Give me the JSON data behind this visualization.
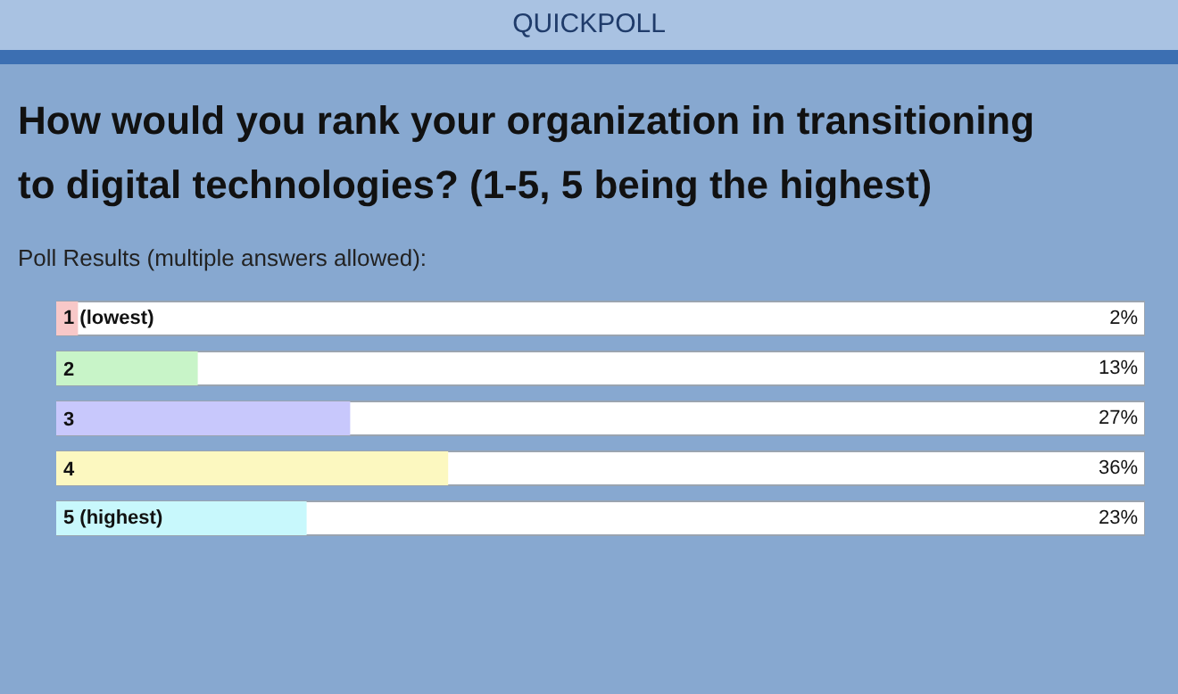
{
  "chart_data": {
    "type": "bar",
    "orientation": "horizontal",
    "subtitle": "QUICKPOLL",
    "title": "How would you rank your organization in transitioning to digital technologies? (1-5, 5 being the highest)",
    "annotations": [
      "Poll Results (multiple answers allowed):"
    ],
    "categories": [
      "1 (lowest)",
      "2",
      "3",
      "4",
      "5 (highest)"
    ],
    "values": [
      2,
      13,
      27,
      36,
      23
    ],
    "value_labels": [
      "2%",
      "13%",
      "27%",
      "36%",
      "23%"
    ],
    "colors": [
      "#f8c8c8",
      "#c8f4c8",
      "#c8c8fc",
      "#fcf8c0",
      "#c8f8fc"
    ],
    "xlim": [
      0,
      100
    ]
  }
}
